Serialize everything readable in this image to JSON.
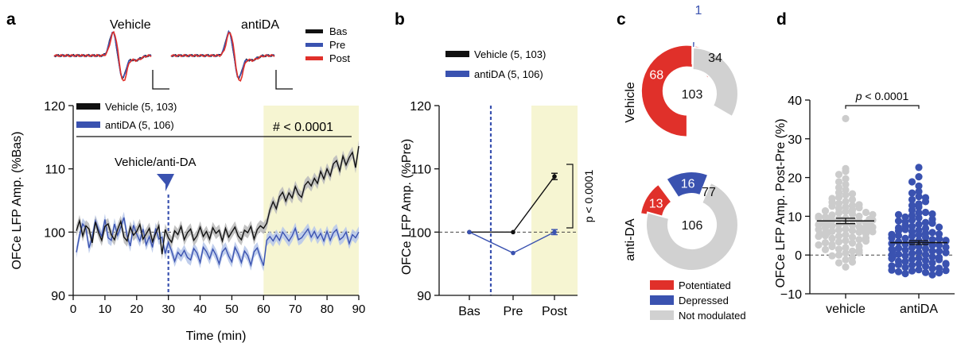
{
  "panel_labels": [
    "a",
    "b",
    "c",
    "d"
  ],
  "colors": {
    "vehicle": "#111111",
    "antida": "#3a52b0",
    "antida_band": "#b9c9ea",
    "vehicle_band": "#bdbdbd",
    "potentiated": "#e0302a",
    "depressed": "#3a52b0",
    "not_modulated": "#d1d1d1",
    "highlight": "#f6f5d2",
    "scatter_vehicle": "#cccccc",
    "scatter_antida": "#3a52b0",
    "trace_bas": "#111111",
    "trace_pre": "#3a52b0",
    "trace_post": "#e0302a"
  },
  "panel_a": {
    "inset_titles": [
      "Vehicle",
      "antiDA"
    ],
    "trace_legend": [
      "Bas",
      "Pre",
      "Post"
    ],
    "legend": [
      "Vehicle (5, 103)",
      "antiDA (5, 106)"
    ],
    "annotation": "Vehicle/anti-DA",
    "stat": "# < 0.0001"
  },
  "panel_b": {
    "legend": [
      "Vehicle (5, 103)",
      "antiDA (5, 106)"
    ],
    "stat": "p < 0.0001"
  },
  "panel_c": {
    "row_labels": [
      "Vehicle",
      "anti-DA"
    ],
    "legend": [
      "Potentiated",
      "Depressed",
      "Not modulated"
    ]
  },
  "panel_d": {
    "stat_p": "p",
    "stat_rest": " < 0.0001"
  },
  "chart_data": [
    {
      "panel": "a",
      "type": "line",
      "xlabel": "Time (min)",
      "ylabel": "OFCe LFP Amp. (%Bas)",
      "xlim": [
        0,
        90
      ],
      "ylim": [
        90,
        120
      ],
      "xticks": [
        0,
        10,
        20,
        30,
        40,
        50,
        60,
        70,
        80,
        90
      ],
      "yticks": [
        90,
        100,
        110,
        120
      ],
      "reference_line": 100,
      "injection_time": 30,
      "highlight_range": [
        60,
        90
      ],
      "series": [
        {
          "name": "Vehicle (5, 103)",
          "x": [
            1,
            2,
            3,
            4,
            5,
            6,
            7,
            8,
            9,
            10,
            11,
            12,
            13,
            14,
            15,
            16,
            17,
            18,
            19,
            20,
            21,
            22,
            23,
            24,
            25,
            26,
            27,
            28,
            29,
            30,
            31,
            32,
            33,
            34,
            35,
            36,
            37,
            38,
            39,
            40,
            41,
            42,
            43,
            44,
            45,
            46,
            47,
            48,
            49,
            50,
            51,
            52,
            53,
            54,
            55,
            56,
            57,
            58,
            59,
            60,
            61,
            62,
            63,
            64,
            65,
            66,
            67,
            68,
            69,
            70,
            71,
            72,
            73,
            74,
            75,
            76,
            77,
            78,
            79,
            80,
            81,
            82,
            83,
            84,
            85,
            86,
            87,
            88,
            89,
            90
          ],
          "values": [
            100.2,
            101.8,
            99.4,
            101.0,
            100.5,
            98.3,
            101.6,
            99.9,
            98.7,
            100.9,
            101.3,
            99.6,
            98.8,
            100.4,
            101.7,
            99.2,
            98.6,
            100.8,
            99.5,
            100.1,
            101.2,
            98.9,
            99.7,
            100.6,
            98.5,
            99.8,
            101.0,
            96.5,
            100.4,
            99.1,
            98.4,
            100.2,
            99.6,
            100.9,
            98.8,
            99.9,
            100.5,
            98.7,
            99.4,
            100.8,
            99.3,
            100.1,
            98.9,
            100.7,
            99.8,
            100.3,
            98.6,
            100.6,
            99.2,
            100.0,
            100.8,
            99.4,
            98.8,
            100.3,
            99.9,
            100.9,
            98.9,
            100.4,
            101.0,
            100.6,
            101.4,
            103.5,
            104.8,
            103.7,
            105.6,
            106.3,
            104.9,
            106.2,
            105.4,
            107.2,
            106.0,
            105.5,
            107.4,
            108.0,
            107.3,
            108.5,
            107.7,
            109.6,
            108.4,
            110.0,
            108.9,
            110.8,
            111.3,
            109.7,
            112.0,
            110.6,
            111.8,
            112.6,
            110.2,
            113.6
          ]
        },
        {
          "name": "antiDA (5, 106)",
          "x": [
            1,
            2,
            3,
            4,
            5,
            6,
            7,
            8,
            9,
            10,
            11,
            12,
            13,
            14,
            15,
            16,
            17,
            18,
            19,
            20,
            21,
            22,
            23,
            24,
            25,
            26,
            27,
            28,
            29,
            30,
            31,
            32,
            33,
            34,
            35,
            36,
            37,
            38,
            39,
            40,
            41,
            42,
            43,
            44,
            45,
            46,
            47,
            48,
            49,
            50,
            51,
            52,
            53,
            54,
            55,
            56,
            57,
            58,
            59,
            60,
            61,
            62,
            63,
            64,
            65,
            66,
            67,
            68,
            69,
            70,
            71,
            72,
            73,
            74,
            75,
            76,
            77,
            78,
            79,
            80,
            81,
            82,
            83,
            84,
            85,
            86,
            87,
            88,
            89,
            90
          ],
          "values": [
            96.8,
            99.5,
            101.3,
            100.6,
            97.5,
            99.2,
            101.8,
            100.4,
            99.3,
            102.0,
            99.1,
            98.7,
            101.3,
            99.5,
            100.8,
            102.3,
            99.4,
            97.8,
            101.1,
            99.7,
            98.6,
            100.5,
            98.0,
            99.3,
            97.6,
            100.6,
            98.9,
            99.2,
            96.6,
            98.4,
            97.0,
            95.4,
            96.8,
            96.2,
            97.1,
            96.0,
            95.6,
            97.4,
            96.7,
            95.2,
            97.6,
            96.9,
            95.8,
            97.3,
            96.4,
            95.0,
            96.9,
            97.5,
            96.2,
            95.3,
            97.6,
            96.6,
            95.2,
            97.0,
            96.3,
            94.8,
            96.9,
            97.5,
            96.0,
            94.7,
            98.7,
            99.3,
            98.6,
            99.5,
            98.7,
            100.0,
            99.3,
            98.6,
            99.4,
            100.6,
            98.8,
            99.1,
            99.8,
            100.5,
            99.2,
            100.1,
            99.0,
            99.8,
            98.6,
            100.1,
            98.7,
            99.9,
            100.4,
            98.8,
            99.2,
            100.0,
            98.2,
            99.6,
            99.1,
            100.0
          ]
        }
      ]
    },
    {
      "panel": "b",
      "type": "line",
      "ylabel": "OFCe LFP Amp. (%Pre)",
      "categories": [
        "Bas",
        "Pre",
        "Post"
      ],
      "ylim": [
        90,
        120
      ],
      "yticks": [
        90,
        100,
        110,
        120
      ],
      "reference_line": 100,
      "highlight_category": "Post",
      "series": [
        {
          "name": "Vehicle (5, 103)",
          "values": [
            100,
            100,
            108.8
          ],
          "error": [
            0,
            0,
            0.5
          ]
        },
        {
          "name": "antiDA (5, 106)",
          "values": [
            100,
            96.7,
            100.0
          ],
          "error": [
            0,
            0,
            0.4
          ]
        }
      ]
    },
    {
      "panel": "c",
      "type": "pie",
      "charts": [
        {
          "name": "Vehicle",
          "total": 103,
          "slices": [
            {
              "label": "Potentiated",
              "value": 68
            },
            {
              "label": "Depressed",
              "value": 1
            },
            {
              "label": "Not modulated",
              "value": 34
            }
          ]
        },
        {
          "name": "anti-DA",
          "total": 106,
          "slices": [
            {
              "label": "Potentiated",
              "value": 13
            },
            {
              "label": "Depressed",
              "value": 16
            },
            {
              "label": "Not modulated",
              "value": 77
            }
          ]
        }
      ]
    },
    {
      "panel": "d",
      "type": "scatter",
      "ylabel": "OFCe LFP Amp. Post-Pre (%)",
      "categories": [
        "vehicle",
        "antiDA"
      ],
      "ylim": [
        -10,
        40
      ],
      "yticks": [
        -10,
        0,
        10,
        20,
        30,
        40
      ],
      "reference_line": 0,
      "means": [
        8.8,
        3.2
      ],
      "sem": [
        0.7,
        0.5
      ],
      "series": [
        {
          "name": "vehicle",
          "values": [
            35.2,
            22.3,
            21.6,
            20.8,
            19.7,
            18.9,
            18.2,
            17.4,
            16.8,
            16.1,
            15.5,
            14.9,
            14.3,
            13.8,
            13.3,
            12.8,
            12.4,
            12.0,
            11.6,
            11.2,
            10.9,
            10.6,
            10.3,
            10.0,
            9.8,
            9.5,
            9.3,
            9.1,
            8.9,
            8.7,
            8.5,
            8.3,
            8.1,
            7.9,
            7.7,
            7.5,
            7.3,
            7.1,
            6.9,
            6.7,
            6.5,
            6.3,
            6.1,
            5.9,
            5.7,
            5.5,
            5.2,
            4.9,
            4.6,
            4.3,
            4.0,
            3.7,
            3.4,
            3.1,
            2.7,
            2.3,
            1.9,
            1.5,
            1.0,
            0.5,
            0.0,
            -0.6,
            -1.2,
            -2.0,
            -3.1,
            11.0,
            10.0,
            9.6,
            9.0,
            8.4,
            7.8,
            7.2,
            6.6,
            6.0,
            5.4,
            12.6,
            13.6,
            14.6,
            15.8,
            10.4,
            9.2,
            8.2,
            7.6,
            6.4,
            5.0,
            4.4,
            3.2,
            2.2,
            1.2,
            -0.2,
            12.2,
            11.4,
            9.4,
            8.0,
            6.8,
            5.8,
            4.8,
            3.6,
            2.6,
            1.4,
            0.6,
            -1.8,
            13.0
          ]
        },
        {
          "name": "antiDA",
          "values": [
            22.6,
            20.2,
            18.9,
            17.8,
            16.4,
            15.1,
            14.3,
            13.2,
            12.4,
            11.6,
            10.9,
            10.2,
            9.6,
            9.0,
            8.4,
            7.9,
            7.4,
            6.9,
            6.4,
            6.0,
            5.6,
            5.2,
            4.9,
            4.6,
            4.3,
            4.0,
            3.7,
            3.4,
            3.1,
            2.8,
            2.5,
            2.2,
            1.9,
            1.6,
            1.3,
            1.0,
            0.7,
            0.4,
            0.1,
            -0.2,
            -0.5,
            -0.8,
            -1.1,
            -1.4,
            -1.7,
            -2.0,
            -2.3,
            -2.6,
            -2.9,
            -3.2,
            -3.5,
            -3.8,
            -4.1,
            -4.5,
            -4.8,
            -5.1,
            11.0,
            9.8,
            8.6,
            7.6,
            6.6,
            5.8,
            5.0,
            4.2,
            3.4,
            2.6,
            1.8,
            1.0,
            0.2,
            -0.6,
            -1.6,
            -2.5,
            -3.4,
            -4.3,
            12.8,
            10.6,
            8.2,
            6.2,
            4.4,
            3.0,
            1.5,
            0.0,
            -1.2,
            -2.8,
            -4.6,
            14.8,
            9.2,
            7.0,
            5.4,
            3.8,
            2.0,
            0.6,
            -0.9,
            -2.2,
            -3.9,
            13.8,
            10.4,
            8.8,
            7.2,
            5.3,
            3.6,
            1.2,
            -0.4,
            -2.4,
            -4.0,
            16.0
          ]
        }
      ]
    }
  ]
}
